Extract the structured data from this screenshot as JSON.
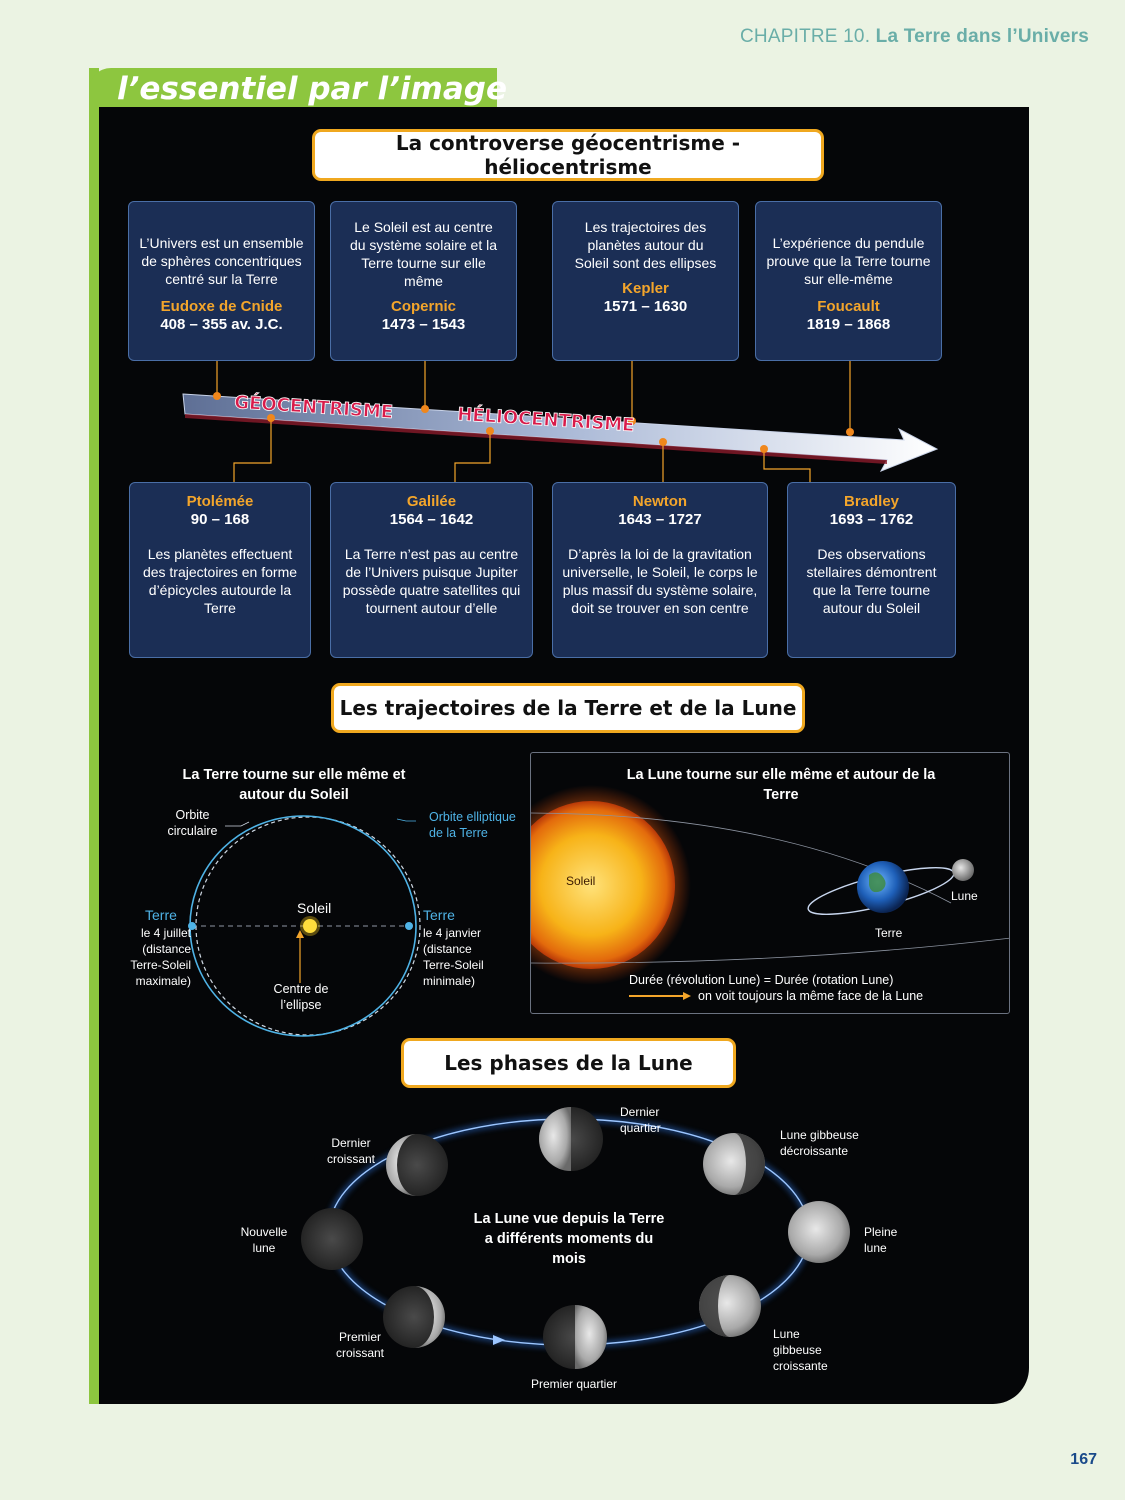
{
  "header": {
    "chapter_prefix": "CHAPITRE 10. ",
    "chapter_title": "La Terre dans l’Univers"
  },
  "tab_title": "l’essentiel par l’image",
  "section1": {
    "title": "La controverse géocentrisme - héliocentrisme",
    "top_cards": [
      {
        "desc": "L’Univers est un ensemble de sphères concentriques centré sur la Terre",
        "name": "Eudoxe de Cnide",
        "dates": "408 – 355 av. J.C."
      },
      {
        "desc": "Le Soleil est au centre du système solaire et la Terre tourne sur elle même",
        "name": "Copernic",
        "dates": "1473 – 1543"
      },
      {
        "desc": "Les trajectoires des planètes autour du Soleil sont des ellipses",
        "name": "Kepler",
        "dates": "1571 – 1630"
      },
      {
        "desc": "L’expérience du pendule prouve que la Terre tourne sur elle-même",
        "name": "Foucault",
        "dates": "1819 – 1868"
      }
    ],
    "bottom_cards": [
      {
        "name": "Ptolémée",
        "dates": "90 – 168",
        "desc": "Les planètes effectuent des trajectoires en forme d’épicycles autourde la Terre"
      },
      {
        "name": "Galilée",
        "dates": "1564 – 1642",
        "desc": "La Terre n’est pas au centre de l’Univers puisque Jupiter possède quatre satellites qui tournent autour d’elle"
      },
      {
        "name": "Newton",
        "dates": "1643 – 1727",
        "desc": "D’après la loi de la gravitation universelle, le Soleil, le corps le plus massif du système solaire, doit se trouver en son centre"
      },
      {
        "name": "Bradley",
        "dates": "1693 – 1762",
        "desc": "Des observations stellaires démontrent que la Terre tourne autour du Soleil"
      }
    ],
    "arrow_labels": {
      "geo": "GÉOCENTRISME",
      "helio": "HÉLIOCENTRISME"
    }
  },
  "section2": {
    "title": "Les trajectoires de la Terre et de la Lune",
    "left": {
      "heading": "La Terre tourne sur elle même et autour du Soleil",
      "orbit_circular": "Orbite circulaire",
      "orbit_elliptic": "Orbite elliptique de la Terre",
      "sun": "Soleil",
      "earth_left_title": "Terre",
      "earth_left_text": "le 4 juillet (distance Terre-Soleil maximale)",
      "earth_right_title": "Terre",
      "earth_right_text": "le 4 janvier (distance Terre-Soleil minimale)",
      "ellipse_center": "Centre de l’ellipse"
    },
    "right": {
      "heading": "La Lune tourne sur elle même et autour de la Terre",
      "sun": "Soleil",
      "earth": "Terre",
      "moon": "Lune",
      "note_line1": "Durée (révolution Lune) = Durée (rotation Lune)",
      "note_line2": "on voit toujours la même face de la Lune"
    }
  },
  "section3": {
    "title": "Les phases de la Lune",
    "center_text": "La Lune vue depuis la Terre a différents moments du mois",
    "phases": {
      "dernier_quartier": "Dernier quartier",
      "gibbeuse_decroissante": "Lune gibbeuse décroissante",
      "pleine_lune": "Pleine lune",
      "gibbeuse_croissante": "Lune gibbeuse croissante",
      "premier_quartier": "Premier quartier",
      "premier_croissant": "Premier croissant",
      "nouvelle_lune": "Nouvelle lune",
      "dernier_croissant": "Dernier croissant"
    }
  },
  "page_number": "167",
  "colors": {
    "accent_gold": "#f3a52b",
    "green": "#8dc63f",
    "card_blue": "#1b2e55",
    "orbit_blue": "#4fb3e6",
    "text_pink": "#d81b4a"
  }
}
